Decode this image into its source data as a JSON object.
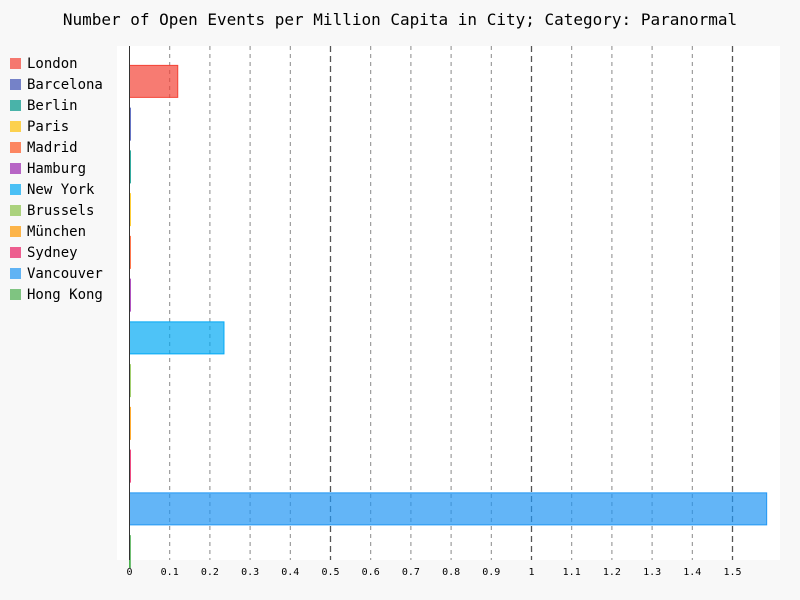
{
  "chart_data": {
    "type": "bar",
    "orientation": "horizontal",
    "title": "Number of Open Events per Million Capita in City; Category: Paranormal",
    "xlabel": "",
    "ylabel": "",
    "xlim": [
      0,
      1.6
    ],
    "grid": "vertical dashed",
    "legend_position": "left",
    "x_ticks": [
      "0",
      "0.1",
      "0.2",
      "0.3",
      "0.4",
      "0.5",
      "0.6",
      "0.7",
      "0.8",
      "0.9",
      "1",
      "1.1",
      "1.2",
      "1.3",
      "1.4",
      "1.5"
    ],
    "series": [
      {
        "name": "London",
        "value": 0.12,
        "color": "#f44336"
      },
      {
        "name": "Barcelona",
        "value": 0,
        "color": "#3f51b5"
      },
      {
        "name": "Berlin",
        "value": 0,
        "color": "#009688"
      },
      {
        "name": "Paris",
        "value": 0,
        "color": "#ffc107"
      },
      {
        "name": "Madrid",
        "value": 0,
        "color": "#ff5722"
      },
      {
        "name": "Hamburg",
        "value": 0,
        "color": "#9c27b0"
      },
      {
        "name": "New York",
        "value": 0.235,
        "color": "#03a9f4"
      },
      {
        "name": "Brussels",
        "value": 0,
        "color": "#8bc34a"
      },
      {
        "name": "München",
        "value": 0,
        "color": "#ff9800"
      },
      {
        "name": "Sydney",
        "value": 0,
        "color": "#e91e63"
      },
      {
        "name": "Vancouver",
        "value": 1.585,
        "color": "#2196f3"
      },
      {
        "name": "Hong Kong",
        "value": 0,
        "color": "#4caf50"
      }
    ]
  }
}
